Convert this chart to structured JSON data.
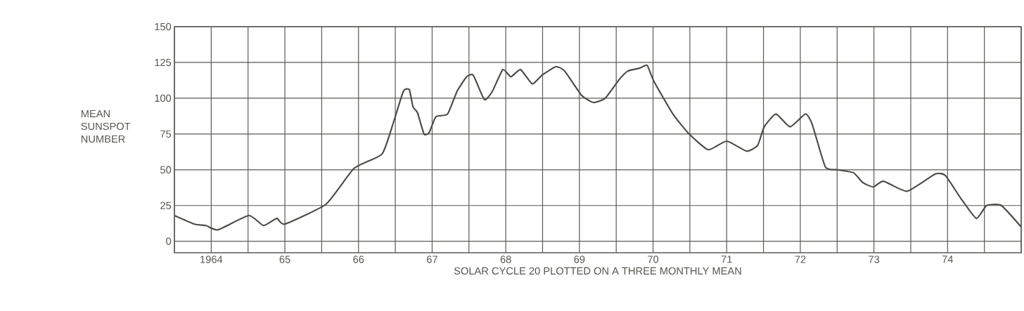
{
  "chart_data": {
    "type": "line",
    "xlabel": "SOLAR CYCLE 20 PLOTTED ON A THREE MONTHLY MEAN",
    "ylabel": "MEAN SUNSPOT NUMBER",
    "x": [
      1963.5,
      1963.77,
      1963.93,
      1964.09,
      1964.51,
      1964.71,
      1964.89,
      1965.0,
      1965.56,
      1965.94,
      1966.32,
      1966.48,
      1966.61,
      1966.69,
      1966.74,
      1966.8,
      1966.89,
      1966.96,
      1967.05,
      1967.21,
      1967.34,
      1967.47,
      1967.56,
      1967.71,
      1967.82,
      1967.96,
      1968.07,
      1968.2,
      1968.36,
      1968.49,
      1968.68,
      1968.8,
      1969.03,
      1969.19,
      1969.35,
      1969.54,
      1969.66,
      1969.82,
      1969.92,
      1970.01,
      1970.27,
      1970.49,
      1970.75,
      1971.0,
      1971.27,
      1971.42,
      1971.51,
      1971.67,
      1971.86,
      1972.07,
      1972.16,
      1972.34,
      1972.5,
      1972.72,
      1972.85,
      1972.99,
      1973.13,
      1973.45,
      1973.83,
      1973.97,
      1974.18,
      1974.39,
      1974.53,
      1974.73,
      1975.0
    ],
    "values": [
      18,
      12,
      11,
      8,
      18,
      11,
      16,
      12,
      26,
      51,
      61,
      84,
      105,
      106,
      94,
      90,
      75,
      76,
      87,
      89,
      105,
      115,
      116,
      99,
      105,
      120,
      115,
      120,
      110,
      116,
      122,
      119,
      102,
      97,
      100,
      113,
      119,
      121,
      123,
      112,
      89,
      75,
      64,
      70,
      63,
      67,
      80,
      89,
      80,
      89,
      82,
      52,
      50,
      48,
      41,
      38,
      42,
      35,
      47,
      46,
      30,
      16,
      25,
      25,
      10
    ],
    "color": "#4a4a46",
    "xlim": [
      1963.5,
      1975
    ],
    "ylim": [
      -8,
      150
    ],
    "xticks": [
      {
        "value": 1963.5,
        "label": null
      },
      {
        "value": 1964,
        "label": "1964"
      },
      {
        "value": 1964.5,
        "label": null
      },
      {
        "value": 1965,
        "label": "65"
      },
      {
        "value": 1965.5,
        "label": null
      },
      {
        "value": 1966,
        "label": "66"
      },
      {
        "value": 1966.5,
        "label": null
      },
      {
        "value": 1967,
        "label": "67"
      },
      {
        "value": 1967.5,
        "label": null
      },
      {
        "value": 1968,
        "label": "68"
      },
      {
        "value": 1968.5,
        "label": null
      },
      {
        "value": 1969,
        "label": "69"
      },
      {
        "value": 1969.5,
        "label": null
      },
      {
        "value": 1970,
        "label": "70"
      },
      {
        "value": 1970.5,
        "label": null
      },
      {
        "value": 1971,
        "label": "71"
      },
      {
        "value": 1971.5,
        "label": null
      },
      {
        "value": 1972,
        "label": "72"
      },
      {
        "value": 1972.5,
        "label": null
      },
      {
        "value": 1973,
        "label": "73"
      },
      {
        "value": 1973.5,
        "label": null
      },
      {
        "value": 1974,
        "label": "74"
      },
      {
        "value": 1974.5,
        "label": null
      },
      {
        "value": 1975,
        "label": null
      }
    ],
    "yticks": [
      0,
      25,
      50,
      75,
      100,
      125,
      150
    ],
    "grid": true
  }
}
